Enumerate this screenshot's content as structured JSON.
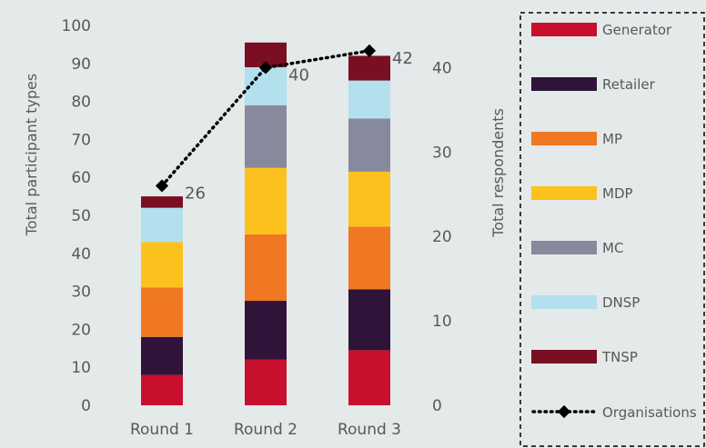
{
  "chart_data": {
    "type": "bar",
    "stacked": true,
    "categories": [
      "Round 1",
      "Round 2",
      "Round 3"
    ],
    "series": [
      {
        "name": "Generator",
        "color": "#c8102e",
        "values": [
          8,
          12,
          14.5
        ]
      },
      {
        "name": "Retailer",
        "color": "#2f1339",
        "values": [
          10,
          15.5,
          16
        ]
      },
      {
        "name": "MP",
        "color": "#f07823",
        "values": [
          13,
          17.5,
          16.5
        ]
      },
      {
        "name": "MDP",
        "color": "#fdc11e",
        "values": [
          12,
          17.5,
          14.5
        ]
      },
      {
        "name": "MC",
        "color": "#878a9c",
        "values": [
          0,
          16.5,
          14
        ]
      },
      {
        "name": "DNSP",
        "color": "#b2e0ed",
        "values": [
          9,
          10,
          10
        ]
      },
      {
        "name": "TNSP",
        "color": "#7a0e22",
        "values": [
          3,
          6.5,
          6.5
        ]
      }
    ],
    "line_series": {
      "name": "Organisations",
      "color": "#000000",
      "axis": "right",
      "values": [
        26,
        40,
        42
      ],
      "labels": [
        "26",
        "40",
        "42"
      ]
    },
    "ylabel": "Total participant types",
    "ylabel_right": "Total respondents",
    "ylim": [
      0,
      100
    ],
    "ylim_right": [
      0,
      45
    ],
    "yticks": [
      "0",
      "10",
      "20",
      "30",
      "40",
      "50",
      "60",
      "70",
      "80",
      "90",
      "100"
    ],
    "yticks_right": [
      "0",
      "10",
      "20",
      "30",
      "40"
    ],
    "legend": [
      "Generator",
      "Retailer",
      "MP",
      "MDP",
      "MC",
      "DNSP",
      "TNSP",
      "Organisations"
    ],
    "legend_position": "right",
    "grid": false
  }
}
